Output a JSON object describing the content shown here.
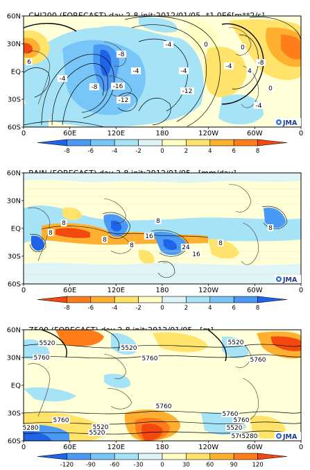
{
  "panels": [
    {
      "id": "chi200",
      "title": "CHI200 (FORECAST) day 2-8 init:2012/01/05",
      "unit": "*1.0E6[m**2/s]",
      "colorbar_ticks": [
        "-8",
        "-6",
        "-4",
        "-2",
        "0",
        "2",
        "4",
        "6",
        "8"
      ],
      "colorbar_colors": [
        "#1f64e8",
        "#4a9af5",
        "#78c6f7",
        "#a7e3f6",
        "#dff4f6",
        "#ffffc4",
        "#ffe36a",
        "#ffb030",
        "#ff7d1a",
        "#f24a0e"
      ],
      "contour_labels": [
        "-4",
        "-8",
        "-4",
        "0",
        "-4",
        "-12",
        "-8",
        "-16",
        "-12",
        "6",
        "-4",
        "4",
        "-8",
        "0",
        "-4",
        "0",
        "-4"
      ],
      "map": {
        "fill": "#ffffd8"
      }
    },
    {
      "id": "rain",
      "title": "RAIN (FORECAST) day 2-8 init:2012/01/05",
      "unit": "[mm/day]",
      "colorbar_ticks": [
        "-8",
        "-6",
        "-4",
        "-2",
        "0",
        "2",
        "4",
        "6",
        "8"
      ],
      "colorbar_colors": [
        "#f24a0e",
        "#ff7d1a",
        "#ffb030",
        "#ffe36a",
        "#ffffc4",
        "#dff4f6",
        "#a7e3f6",
        "#78c6f7",
        "#4a9af5",
        "#1f64e8"
      ],
      "contour_labels": [
        "8",
        "8",
        "8",
        "16",
        "8",
        "24",
        "16",
        "8",
        "8",
        "8"
      ],
      "map": {
        "fill": "#ffffd8"
      }
    },
    {
      "id": "z500",
      "title": "Z500 (FORECAST) day 2-8 init:2012/01/05",
      "unit": "[m]",
      "colorbar_ticks": [
        "-120",
        "-90",
        "-60",
        "-30",
        "0",
        "30",
        "60",
        "90",
        "120"
      ],
      "colorbar_colors": [
        "#1f64e8",
        "#4a9af5",
        "#78c6f7",
        "#a7e3f6",
        "#dff4f6",
        "#ffffc4",
        "#ffe36a",
        "#ffb030",
        "#ff7d1a",
        "#f24a0e"
      ],
      "contour_labels": [
        "5520",
        "5760",
        "5520",
        "5760",
        "5520",
        "5760",
        "5760",
        "5760",
        "5520",
        "5760",
        "5280",
        "5760",
        "5520",
        "5760",
        "5520",
        "5280"
      ],
      "map": {
        "fill": "#ffffd8"
      }
    }
  ],
  "lat_labels": [
    "60N",
    "30N",
    "EQ",
    "30S",
    "60S"
  ],
  "lon_labels": [
    "0",
    "60E",
    "120E",
    "180",
    "120W",
    "60W",
    "0"
  ],
  "logo_text": "JMA"
}
